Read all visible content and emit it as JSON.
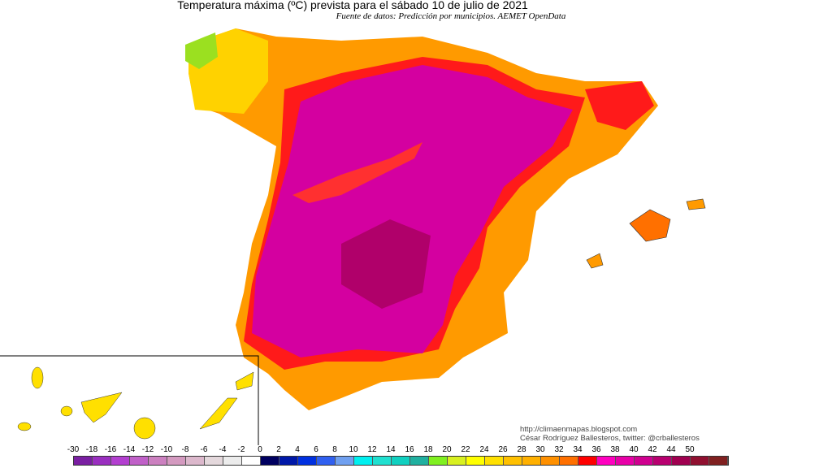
{
  "title": "Temperatura máxima (ºC) prevista para el sábado 10 de julio de 2021",
  "subtitle": "Fuente de datos: Predicción por municipios. AEMET OpenData",
  "credits": {
    "url": "http://climaenmapas.blogspot.com",
    "author": "César Rodríguez Ballesteros, twitter: @crballesteros"
  },
  "legend": {
    "labels": [
      "-30",
      "-18",
      "-16",
      "-14",
      "-12",
      "-10",
      "-8",
      "-6",
      "-4",
      "-2",
      "0",
      "2",
      "4",
      "6",
      "8",
      "10",
      "12",
      "14",
      "16",
      "18",
      "20",
      "22",
      "24",
      "26",
      "28",
      "30",
      "32",
      "34",
      "36",
      "38",
      "40",
      "42",
      "44",
      "50"
    ],
    "colors": [
      "#7a1fa2",
      "#9a2fc0",
      "#b33fd0",
      "#c060c8",
      "#cc80c0",
      "#d49ac0",
      "#dcb8cc",
      "#e4d8dc",
      "#ececec",
      "#ffffff",
      "#000060",
      "#0018a8",
      "#0030e0",
      "#3060f0",
      "#70a0f0",
      "#00f0f0",
      "#20e0d0",
      "#10d0c0",
      "#20b0a0",
      "#80f020",
      "#d8f020",
      "#ffff00",
      "#ffe000",
      "#ffc000",
      "#ffb000",
      "#ff9000",
      "#ff7000",
      "#ff0000",
      "#ff00c0",
      "#e800a8",
      "#d00090",
      "#b80070",
      "#a00050",
      "#901030",
      "#802020"
    ]
  },
  "map_colors": {
    "interior": "#d400a0",
    "hot_core": "#b0006a",
    "edge": "#ff1a1a",
    "coast": "#ff9a00",
    "north": "#ffc800",
    "galicia": "#9be020"
  }
}
